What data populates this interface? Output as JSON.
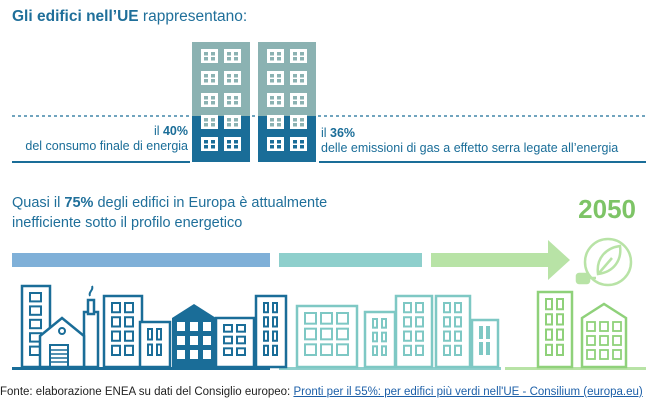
{
  "header": {
    "title_bold": "Gli edifici nell’UE",
    "title_rest": " rappresentano:"
  },
  "stats": {
    "left_pre": "il ",
    "left_value": "40%",
    "left_desc": "del consumo finale di energia",
    "right_pre": "il ",
    "right_value": "36%",
    "right_desc": "delle emissioni di gas a effetto serra legate all’energia"
  },
  "efficiency": {
    "line1_pre": "Quasi il ",
    "line1_value": "75%",
    "line1_post": " degli edifici in Europa è attualmente",
    "line2": "inefficiente sotto il profilo energetico"
  },
  "target_year": "2050",
  "source": {
    "prefix": "Fonte: elaborazione ENEA su dati del Consiglio europeo: ",
    "link": "Pronti per il 55%: per edifici più verdi nell'UE - Consilium (europa.eu)"
  },
  "colors": {
    "dark_blue": "#1a6d98",
    "light_slate": "#8bb2b2",
    "teal": "#8ecfcc",
    "light_blue": "#7fb0d8",
    "green": "#7dc466",
    "light_green": "#b8e3a6"
  },
  "icons": [
    "building-icon",
    "factory-icon",
    "house-icon",
    "eco-plug-icon"
  ]
}
